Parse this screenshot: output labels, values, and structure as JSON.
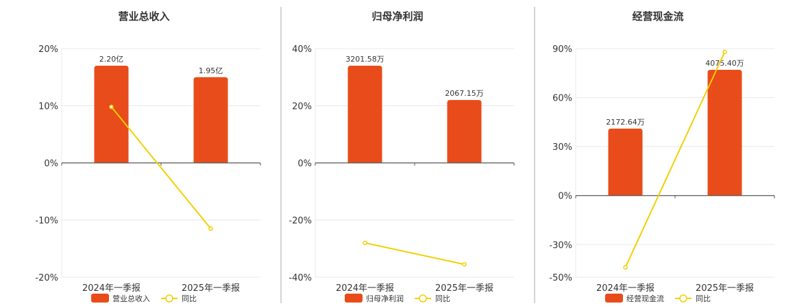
{
  "colors": {
    "bar": "#e84c1a",
    "line": "#f2cf00",
    "axis": "#555555",
    "grid": "#e8e8e8",
    "divider": "#aaaaaa"
  },
  "chart_data": [
    {
      "type": "bar",
      "title": "营业总收入",
      "categories": [
        "2024年一季报",
        "2025年一季报"
      ],
      "ylim": [
        -20,
        20
      ],
      "yticks": [
        -20,
        -10,
        0,
        10,
        20
      ],
      "ytick_labels": [
        "-20%",
        "-10%",
        "0%",
        "10%",
        "20%"
      ],
      "series": [
        {
          "name": "营业总收入",
          "kind": "bar",
          "values": [
            17.0,
            15.0
          ],
          "labels": [
            "2.20亿",
            "1.95亿"
          ]
        },
        {
          "name": "同比",
          "kind": "line",
          "values": [
            9.8,
            -11.5
          ]
        }
      ],
      "legend": "bottom-center",
      "grid": true
    },
    {
      "type": "bar",
      "title": "归母净利润",
      "categories": [
        "2024年一季报",
        "2025年一季报"
      ],
      "ylim": [
        -40,
        40
      ],
      "yticks": [
        -40,
        -20,
        0,
        20,
        40
      ],
      "ytick_labels": [
        "-40%",
        "-20%",
        "0%",
        "20%",
        "40%"
      ],
      "series": [
        {
          "name": "归母净利润",
          "kind": "bar",
          "values": [
            34.0,
            22.0
          ],
          "labels": [
            "3201.58万",
            "2067.15万"
          ]
        },
        {
          "name": "同比",
          "kind": "line",
          "values": [
            -28.0,
            -35.5
          ]
        }
      ],
      "legend": "bottom-center",
      "grid": true
    },
    {
      "type": "bar",
      "title": "经营现金流",
      "categories": [
        "2024年一季报",
        "2025年一季报"
      ],
      "ylim": [
        -50,
        90
      ],
      "yticks": [
        -50,
        -30,
        0,
        30,
        60,
        90
      ],
      "ytick_labels": [
        "-50%",
        "-30%",
        "0%",
        "30%",
        "60%",
        "90%"
      ],
      "series": [
        {
          "name": "经营现金流",
          "kind": "bar",
          "values": [
            41.0,
            77.0
          ],
          "labels": [
            "2172.64万",
            "4075.40万"
          ]
        },
        {
          "name": "同比",
          "kind": "line",
          "values": [
            -44.0,
            88.0
          ]
        }
      ],
      "legend": "bottom-center",
      "grid": true
    }
  ]
}
